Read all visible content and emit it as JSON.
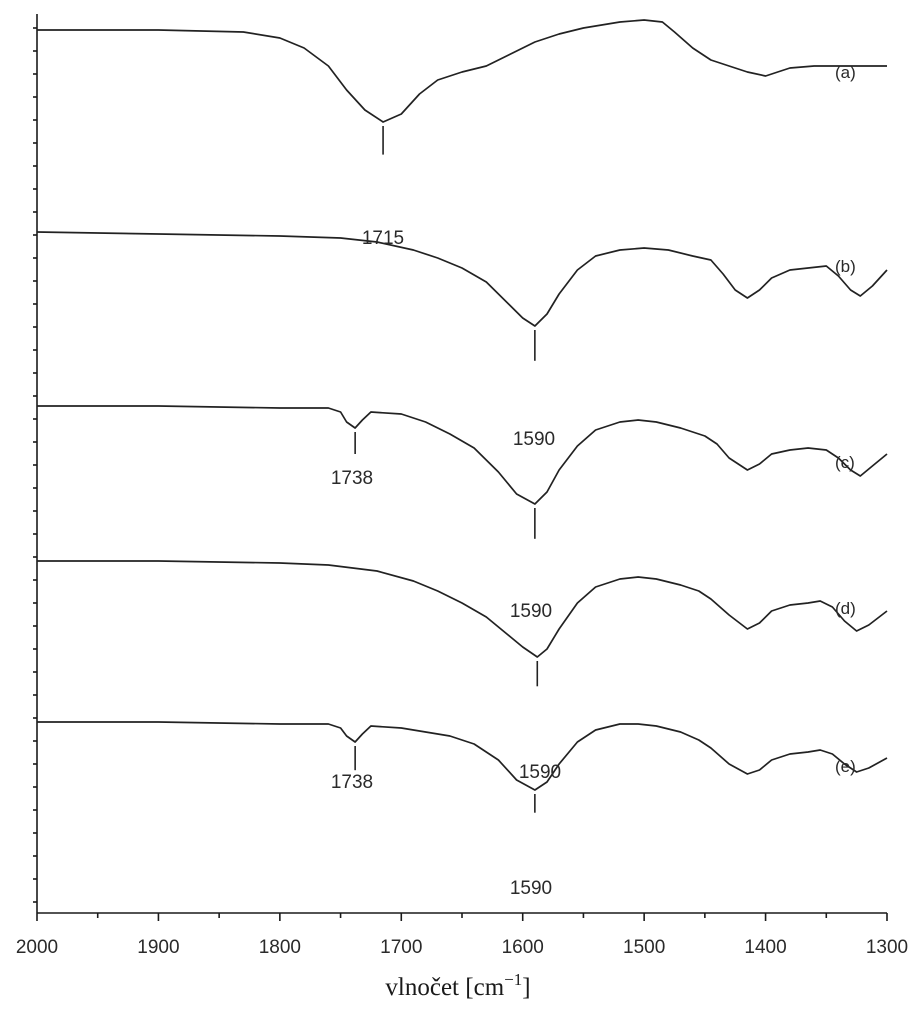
{
  "chart_data": {
    "type": "line",
    "title": "",
    "xlabel": "vlnočet",
    "xlabel_unit": "cm",
    "xlabel_unit_exp": "−1",
    "ylabel": "",
    "xlim": [
      2000,
      1300
    ],
    "x_reversed": true,
    "y_axis_labels": false,
    "grid": false,
    "x_ticks": [
      "2000",
      "1900",
      "1800",
      "1700",
      "1600",
      "1500",
      "1400",
      "1300"
    ],
    "series": [
      {
        "name": "(a)",
        "points": [
          [
            2000,
            0.92
          ],
          [
            1900,
            0.92
          ],
          [
            1830,
            0.91
          ],
          [
            1800,
            0.88
          ],
          [
            1780,
            0.83
          ],
          [
            1760,
            0.74
          ],
          [
            1745,
            0.62
          ],
          [
            1730,
            0.52
          ],
          [
            1715,
            0.46
          ],
          [
            1700,
            0.5
          ],
          [
            1685,
            0.6
          ],
          [
            1670,
            0.67
          ],
          [
            1650,
            0.71
          ],
          [
            1630,
            0.74
          ],
          [
            1610,
            0.8
          ],
          [
            1590,
            0.86
          ],
          [
            1570,
            0.9
          ],
          [
            1550,
            0.93
          ],
          [
            1520,
            0.96
          ],
          [
            1500,
            0.97
          ],
          [
            1485,
            0.96
          ],
          [
            1475,
            0.91
          ],
          [
            1460,
            0.83
          ],
          [
            1445,
            0.77
          ],
          [
            1430,
            0.74
          ],
          [
            1415,
            0.71
          ],
          [
            1400,
            0.69
          ],
          [
            1390,
            0.71
          ],
          [
            1380,
            0.73
          ],
          [
            1360,
            0.74
          ],
          [
            1340,
            0.74
          ],
          [
            1300,
            0.74
          ]
        ]
      },
      {
        "name": "(b)",
        "points": [
          [
            2000,
            0.95
          ],
          [
            1900,
            0.94
          ],
          [
            1800,
            0.93
          ],
          [
            1750,
            0.92
          ],
          [
            1720,
            0.9
          ],
          [
            1690,
            0.86
          ],
          [
            1670,
            0.82
          ],
          [
            1650,
            0.77
          ],
          [
            1630,
            0.7
          ],
          [
            1610,
            0.58
          ],
          [
            1600,
            0.52
          ],
          [
            1590,
            0.48
          ],
          [
            1580,
            0.54
          ],
          [
            1570,
            0.64
          ],
          [
            1555,
            0.76
          ],
          [
            1540,
            0.83
          ],
          [
            1520,
            0.86
          ],
          [
            1500,
            0.87
          ],
          [
            1480,
            0.86
          ],
          [
            1460,
            0.83
          ],
          [
            1445,
            0.81
          ],
          [
            1435,
            0.74
          ],
          [
            1425,
            0.66
          ],
          [
            1415,
            0.62
          ],
          [
            1405,
            0.66
          ],
          [
            1395,
            0.72
          ],
          [
            1380,
            0.76
          ],
          [
            1365,
            0.77
          ],
          [
            1350,
            0.78
          ],
          [
            1340,
            0.73
          ],
          [
            1330,
            0.66
          ],
          [
            1322,
            0.63
          ],
          [
            1312,
            0.68
          ],
          [
            1300,
            0.76
          ]
        ]
      },
      {
        "name": "(c)",
        "points": [
          [
            2000,
            0.96
          ],
          [
            1900,
            0.96
          ],
          [
            1800,
            0.95
          ],
          [
            1760,
            0.95
          ],
          [
            1750,
            0.93
          ],
          [
            1745,
            0.88
          ],
          [
            1738,
            0.85
          ],
          [
            1732,
            0.89
          ],
          [
            1725,
            0.93
          ],
          [
            1700,
            0.92
          ],
          [
            1680,
            0.88
          ],
          [
            1660,
            0.82
          ],
          [
            1640,
            0.75
          ],
          [
            1620,
            0.63
          ],
          [
            1605,
            0.52
          ],
          [
            1590,
            0.47
          ],
          [
            1580,
            0.53
          ],
          [
            1570,
            0.64
          ],
          [
            1555,
            0.76
          ],
          [
            1540,
            0.84
          ],
          [
            1520,
            0.88
          ],
          [
            1505,
            0.89
          ],
          [
            1490,
            0.88
          ],
          [
            1470,
            0.85
          ],
          [
            1450,
            0.81
          ],
          [
            1440,
            0.77
          ],
          [
            1430,
            0.7
          ],
          [
            1415,
            0.64
          ],
          [
            1405,
            0.67
          ],
          [
            1395,
            0.72
          ],
          [
            1380,
            0.74
          ],
          [
            1365,
            0.75
          ],
          [
            1350,
            0.74
          ],
          [
            1340,
            0.7
          ],
          [
            1330,
            0.64
          ],
          [
            1322,
            0.61
          ],
          [
            1312,
            0.66
          ],
          [
            1300,
            0.72
          ]
        ]
      },
      {
        "name": "(d)",
        "points": [
          [
            2000,
            0.97
          ],
          [
            1900,
            0.97
          ],
          [
            1800,
            0.96
          ],
          [
            1760,
            0.95
          ],
          [
            1720,
            0.92
          ],
          [
            1690,
            0.87
          ],
          [
            1670,
            0.82
          ],
          [
            1650,
            0.76
          ],
          [
            1630,
            0.69
          ],
          [
            1610,
            0.59
          ],
          [
            1600,
            0.54
          ],
          [
            1588,
            0.49
          ],
          [
            1580,
            0.53
          ],
          [
            1570,
            0.63
          ],
          [
            1555,
            0.76
          ],
          [
            1540,
            0.84
          ],
          [
            1520,
            0.88
          ],
          [
            1505,
            0.89
          ],
          [
            1490,
            0.88
          ],
          [
            1470,
            0.85
          ],
          [
            1455,
            0.82
          ],
          [
            1445,
            0.78
          ],
          [
            1430,
            0.7
          ],
          [
            1415,
            0.63
          ],
          [
            1405,
            0.66
          ],
          [
            1395,
            0.72
          ],
          [
            1380,
            0.75
          ],
          [
            1365,
            0.76
          ],
          [
            1355,
            0.77
          ],
          [
            1345,
            0.74
          ],
          [
            1335,
            0.67
          ],
          [
            1325,
            0.62
          ],
          [
            1315,
            0.65
          ],
          [
            1300,
            0.72
          ]
        ]
      },
      {
        "name": "(e)",
        "points": [
          [
            2000,
            0.95
          ],
          [
            1900,
            0.95
          ],
          [
            1800,
            0.94
          ],
          [
            1760,
            0.94
          ],
          [
            1750,
            0.92
          ],
          [
            1745,
            0.88
          ],
          [
            1738,
            0.85
          ],
          [
            1732,
            0.89
          ],
          [
            1725,
            0.93
          ],
          [
            1700,
            0.92
          ],
          [
            1680,
            0.9
          ],
          [
            1660,
            0.88
          ],
          [
            1640,
            0.84
          ],
          [
            1620,
            0.76
          ],
          [
            1605,
            0.66
          ],
          [
            1590,
            0.61
          ],
          [
            1580,
            0.65
          ],
          [
            1570,
            0.74
          ],
          [
            1555,
            0.85
          ],
          [
            1540,
            0.91
          ],
          [
            1520,
            0.94
          ],
          [
            1505,
            0.94
          ],
          [
            1490,
            0.93
          ],
          [
            1470,
            0.9
          ],
          [
            1455,
            0.86
          ],
          [
            1445,
            0.82
          ],
          [
            1430,
            0.74
          ],
          [
            1415,
            0.69
          ],
          [
            1405,
            0.71
          ],
          [
            1395,
            0.76
          ],
          [
            1380,
            0.79
          ],
          [
            1365,
            0.8
          ],
          [
            1355,
            0.81
          ],
          [
            1345,
            0.79
          ],
          [
            1335,
            0.74
          ],
          [
            1325,
            0.7
          ],
          [
            1315,
            0.72
          ],
          [
            1300,
            0.77
          ]
        ]
      }
    ],
    "annotations": [
      {
        "series": "(a)",
        "x": 1715,
        "label": "1715"
      },
      {
        "series": "(b)",
        "x": 1590,
        "label": "1590"
      },
      {
        "series": "(c)",
        "x": 1738,
        "label": "1738"
      },
      {
        "series": "(c)",
        "x": 1590,
        "label": "1590"
      },
      {
        "series": "(d)",
        "x": 1588,
        "label": "1590"
      },
      {
        "series": "(e)",
        "x": 1738,
        "label": "1738"
      },
      {
        "series": "(e)",
        "x": 1590,
        "label": "1590"
      }
    ]
  }
}
